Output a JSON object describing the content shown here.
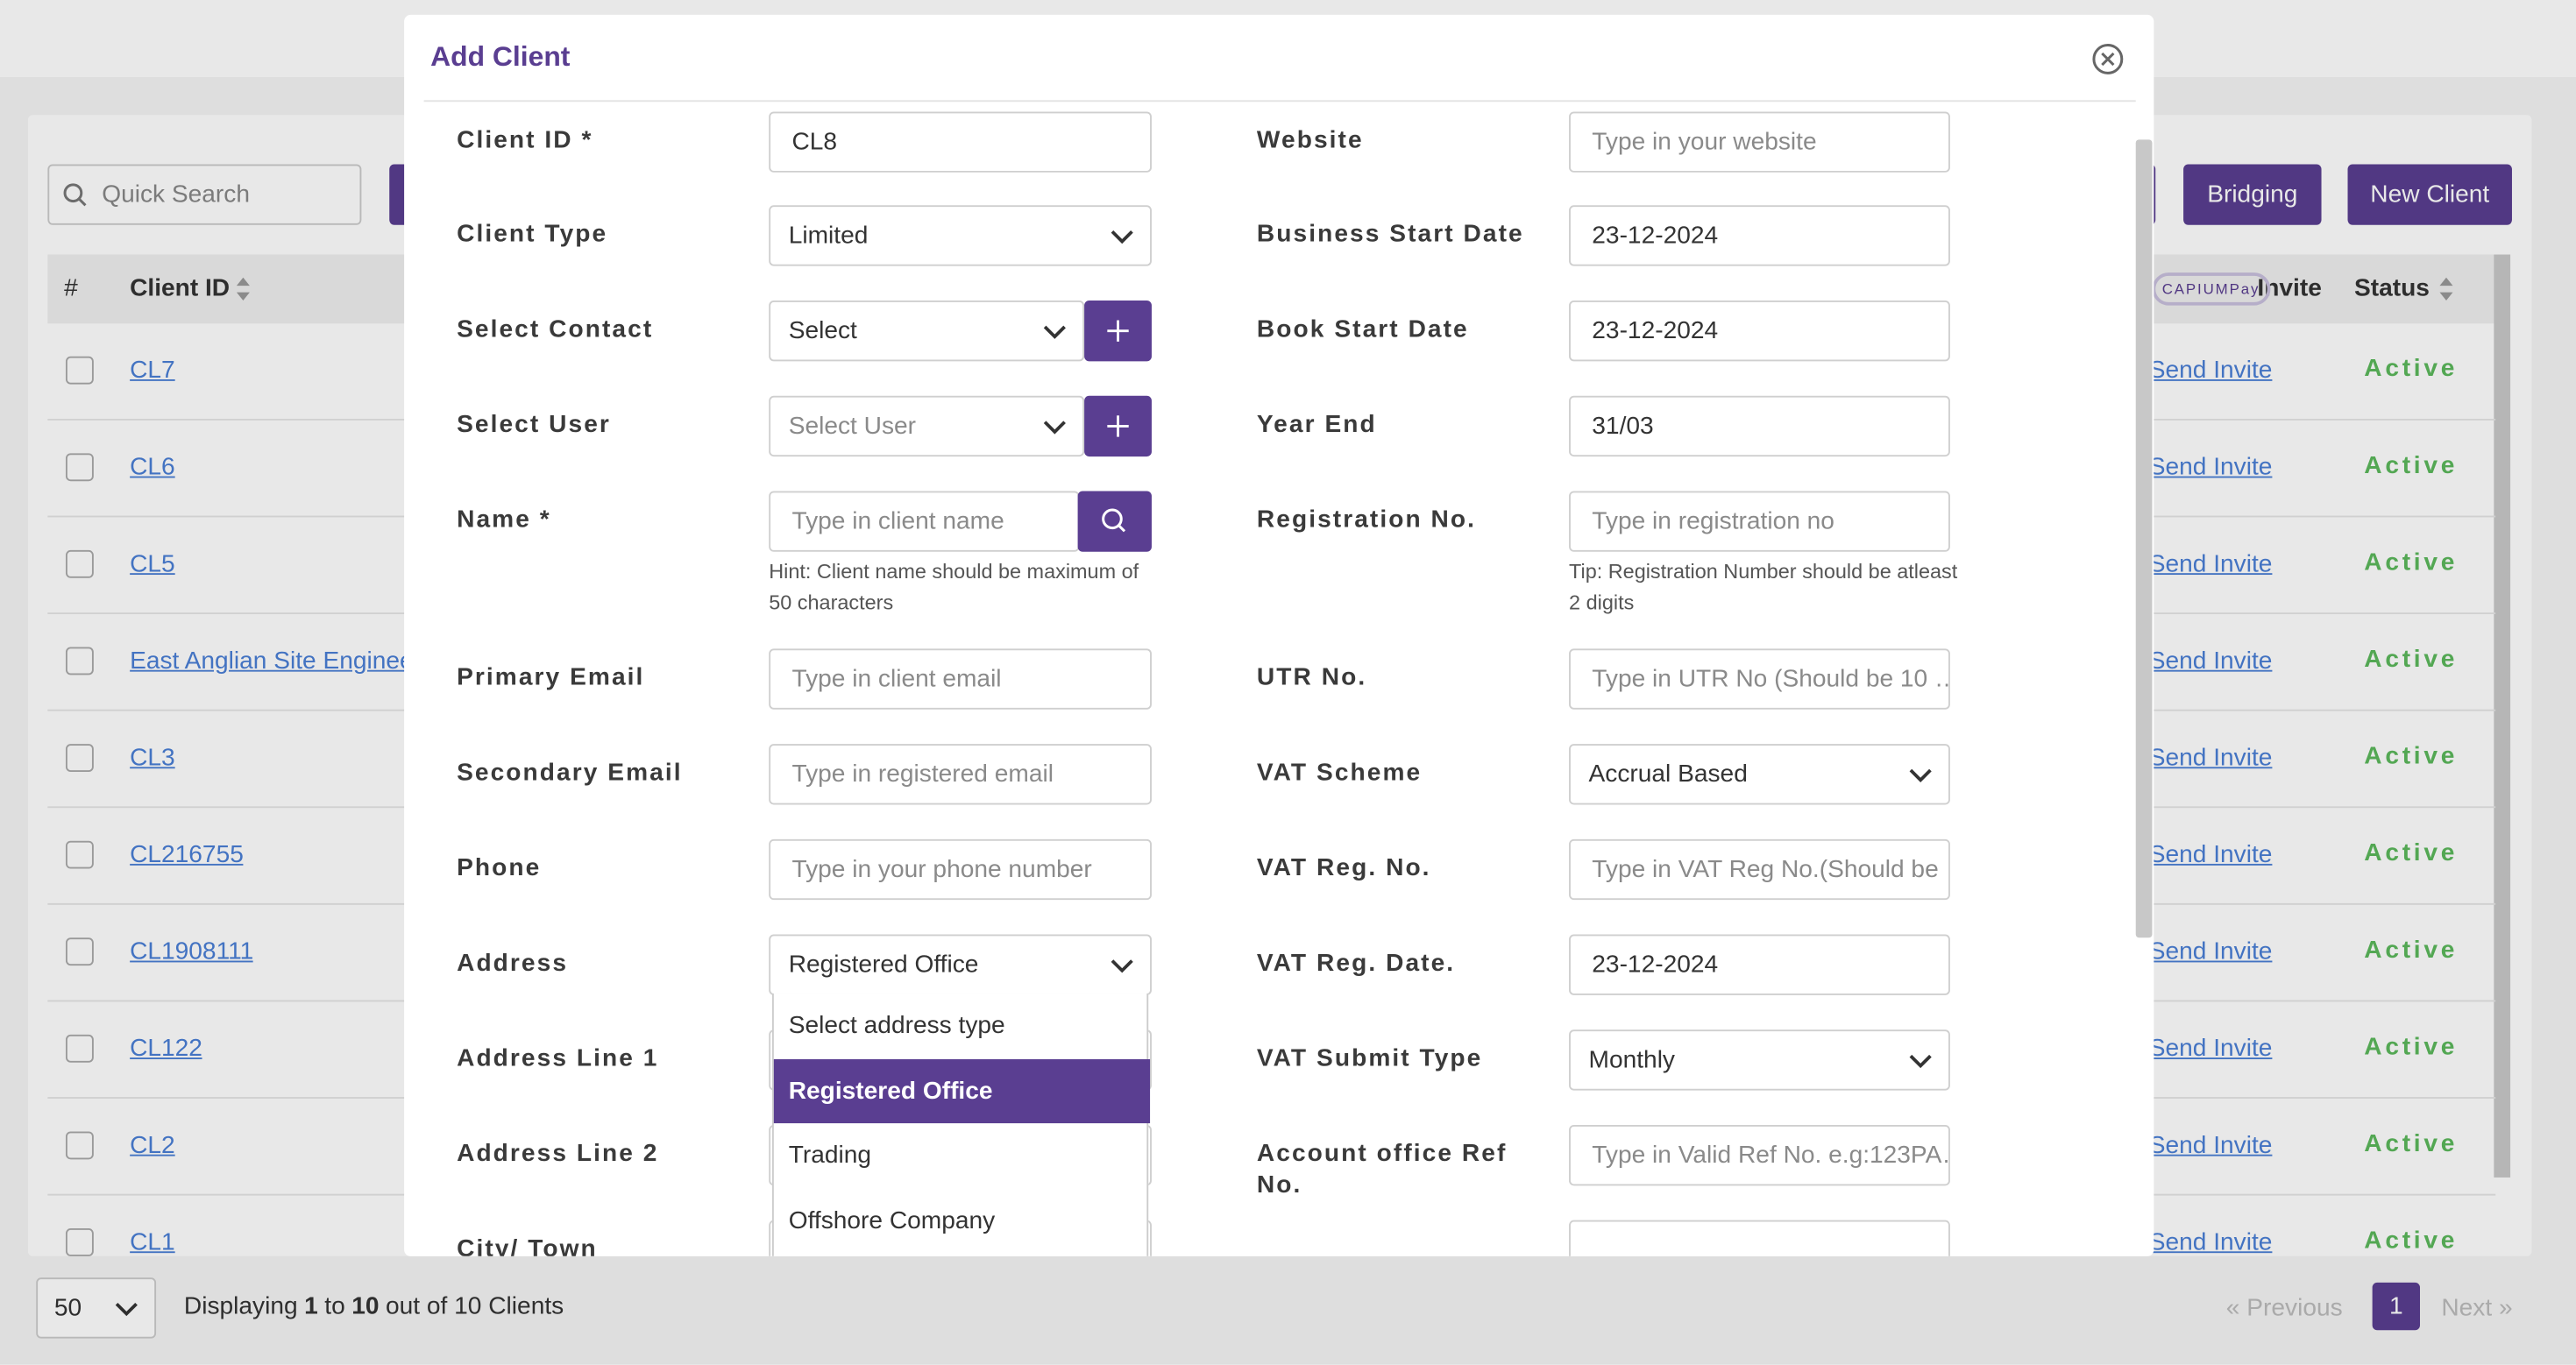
{
  "background": {
    "search_placeholder": "Quick Search",
    "buttons": [
      "Bridging",
      "New Client"
    ],
    "table": {
      "headers": [
        "#",
        "Client ID",
        "Invite",
        "Status"
      ],
      "logo": "CAPIUMPay",
      "rows": [
        {
          "client_id": "CL7",
          "invite": "Send Invite",
          "status": "Active"
        },
        {
          "client_id": "CL6",
          "invite": "Send Invite",
          "status": "Active"
        },
        {
          "client_id": "CL5",
          "invite": "Send Invite",
          "status": "Active"
        },
        {
          "client_id": "East Anglian Site Enginee",
          "invite": "Send Invite",
          "status": "Active"
        },
        {
          "client_id": "CL3",
          "invite": "Send Invite",
          "status": "Active"
        },
        {
          "client_id": "CL216755",
          "invite": "Send Invite",
          "status": "Active"
        },
        {
          "client_id": "CL1908111",
          "invite": "Send Invite",
          "status": "Active"
        },
        {
          "client_id": "CL122",
          "invite": "Send Invite",
          "status": "Active"
        },
        {
          "client_id": "CL2",
          "invite": "Send Invite",
          "status": "Active"
        },
        {
          "client_id": "CL1",
          "invite": "Send Invite",
          "status": "Active"
        }
      ]
    },
    "footer": {
      "page_size": "50",
      "displaying": [
        "Displaying",
        "1",
        "to",
        "10",
        "out of 10 Clients"
      ],
      "pagination": [
        "« Previous",
        "1",
        "Next »"
      ]
    }
  },
  "modal": {
    "title": "Add Client",
    "left_fields": [
      {
        "label": "Client ID *",
        "control": "input",
        "value": "CL8"
      },
      {
        "label": "Client Type",
        "control": "select",
        "value": "Limited"
      },
      {
        "label": "Select Contact",
        "control": "select-plus",
        "value": "Select"
      },
      {
        "label": "Select User",
        "control": "select-plus",
        "placeholder": "Select User"
      },
      {
        "label": "Name *",
        "control": "input-search",
        "placeholder": "Type in client name",
        "hint": "Hint: Client name should be maximum of 50 characters"
      },
      {
        "label": "Primary Email",
        "control": "input",
        "placeholder": "Type in client email"
      },
      {
        "label": "Secondary Email",
        "control": "input",
        "placeholder": "Type in registered email"
      },
      {
        "label": "Phone",
        "control": "input",
        "placeholder": "Type in your phone number"
      },
      {
        "label": "Address",
        "control": "select",
        "value": "Registered Office"
      },
      {
        "label": "Address Line 1",
        "control": "input"
      },
      {
        "label": "Address Line 2",
        "control": "input"
      },
      {
        "label": "City/ Town",
        "control": "input"
      }
    ],
    "right_fields": [
      {
        "label": "Website",
        "control": "input",
        "placeholder": "Type in your website"
      },
      {
        "label": "Business Start Date",
        "control": "input",
        "value": "23-12-2024"
      },
      {
        "label": "Book Start Date",
        "control": "input",
        "value": "23-12-2024"
      },
      {
        "label": "Year End",
        "control": "input",
        "value": "31/03"
      },
      {
        "label": "Registration No.",
        "control": "input",
        "placeholder": "Type in registration no",
        "hint": "Tip: Registration Number should be atleast 2 digits"
      },
      {
        "label": "UTR No.",
        "control": "input",
        "placeholder": "Type in UTR No (Should be 10 …"
      },
      {
        "label": "VAT Scheme",
        "control": "select",
        "value": "Accrual Based"
      },
      {
        "label": "VAT Reg. No.",
        "control": "input",
        "placeholder": "Type in VAT Reg No.(Should be …"
      },
      {
        "label": "VAT Reg. Date.",
        "control": "input",
        "value": "23-12-2024"
      },
      {
        "label": "VAT Submit Type",
        "control": "select",
        "value": "Monthly"
      },
      {
        "label": "Account office Ref No.",
        "control": "input",
        "placeholder": "Type in Valid Ref No. e.g:123PA…"
      },
      {
        "control": "input"
      }
    ],
    "dropdown_options": [
      {
        "label": "Select address type"
      },
      {
        "label": "Registered Office",
        "selected": true
      },
      {
        "label": "Trading"
      },
      {
        "label": "Offshore Company"
      }
    ]
  }
}
